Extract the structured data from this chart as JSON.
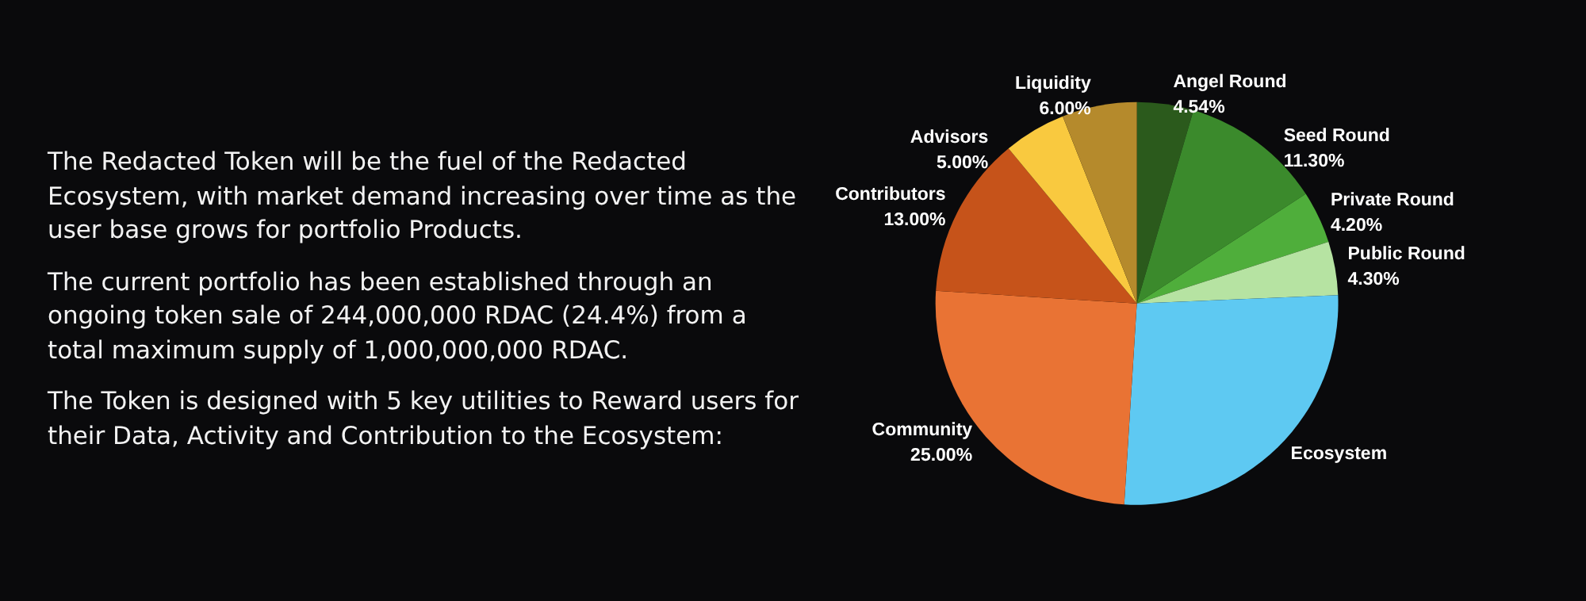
{
  "chart_data": {
    "type": "pie",
    "categories": [
      "Angel Round",
      "Seed Round",
      "Private Round",
      "Public Round",
      "Ecosystem",
      "Community",
      "Contributors",
      "Advisors",
      "Liquidity"
    ],
    "values": [
      4.54,
      11.3,
      4.2,
      4.3,
      26.66,
      25.0,
      13.0,
      5.0,
      6.0
    ],
    "value_labels": [
      "4.54%",
      "11.30%",
      "4.20%",
      "4.30%",
      null,
      "25.00%",
      "13.00%",
      "5.00%",
      "6.00%"
    ],
    "colors": [
      "#2b5a1c",
      "#3b8a2c",
      "#4fae3b",
      "#b6e3a2",
      "#5ec9f2",
      "#e97334",
      "#c6531a",
      "#f9c93f",
      "#b58a2c"
    ],
    "annotations": [
      "The Redacted Token will be the fuel of the Redacted Ecosystem, with market demand increasing over time as the user base grows for portfolio Products.",
      "The current portfolio has been established through an ongoing token sale of 244,000,000 RDAC (24.4%) from a total maximum supply of 1,000,000,000 RDAC.",
      "The Token is designed with 5 key utilities to Reward users for their Data, Activity and Contribution to the Ecosystem:"
    ],
    "legend": false
  }
}
